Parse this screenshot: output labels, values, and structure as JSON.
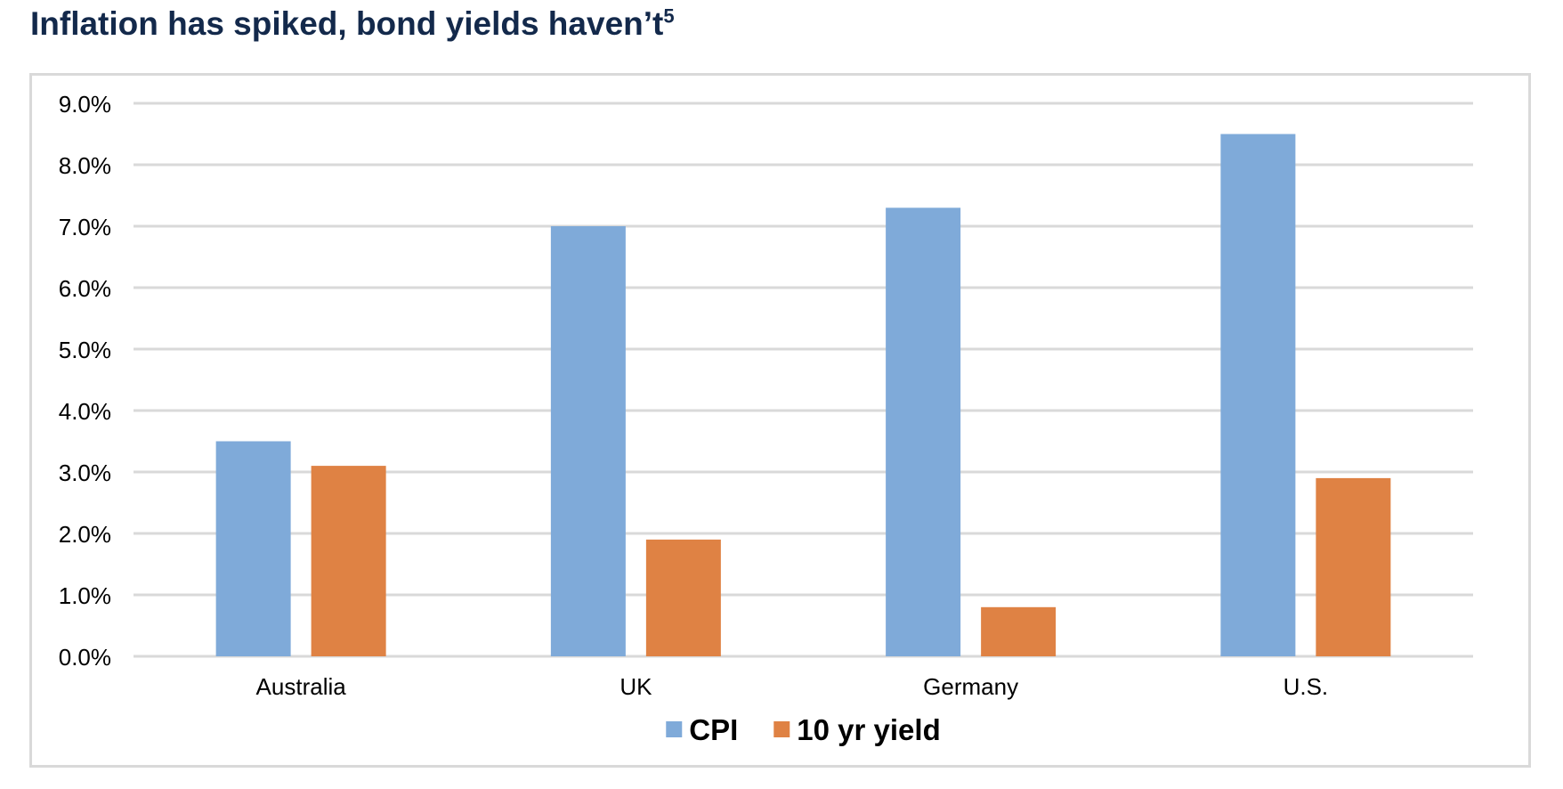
{
  "page": {
    "title": "Inflation has spiked, bond yields haven’t",
    "title_footnote": "5"
  },
  "chart_data": {
    "type": "bar",
    "title": "",
    "xlabel": "",
    "ylabel": "",
    "categories": [
      "Australia",
      "UK",
      "Germany",
      "U.S."
    ],
    "series": [
      {
        "name": "CPI",
        "color": "#7faad9",
        "values": [
          3.5,
          7.0,
          7.3,
          8.5
        ]
      },
      {
        "name": "10 yr yield",
        "color": "#df8244",
        "values": [
          3.1,
          1.9,
          0.8,
          2.9
        ]
      }
    ],
    "ylim": [
      0,
      9
    ],
    "yticks": [
      0,
      1,
      2,
      3,
      4,
      5,
      6,
      7,
      8,
      9
    ],
    "ytick_labels": [
      "0.0%",
      "1.0%",
      "2.0%",
      "3.0%",
      "4.0%",
      "5.0%",
      "6.0%",
      "7.0%",
      "8.0%",
      "9.0%"
    ],
    "grid": true,
    "legend_position": "bottom-center"
  }
}
